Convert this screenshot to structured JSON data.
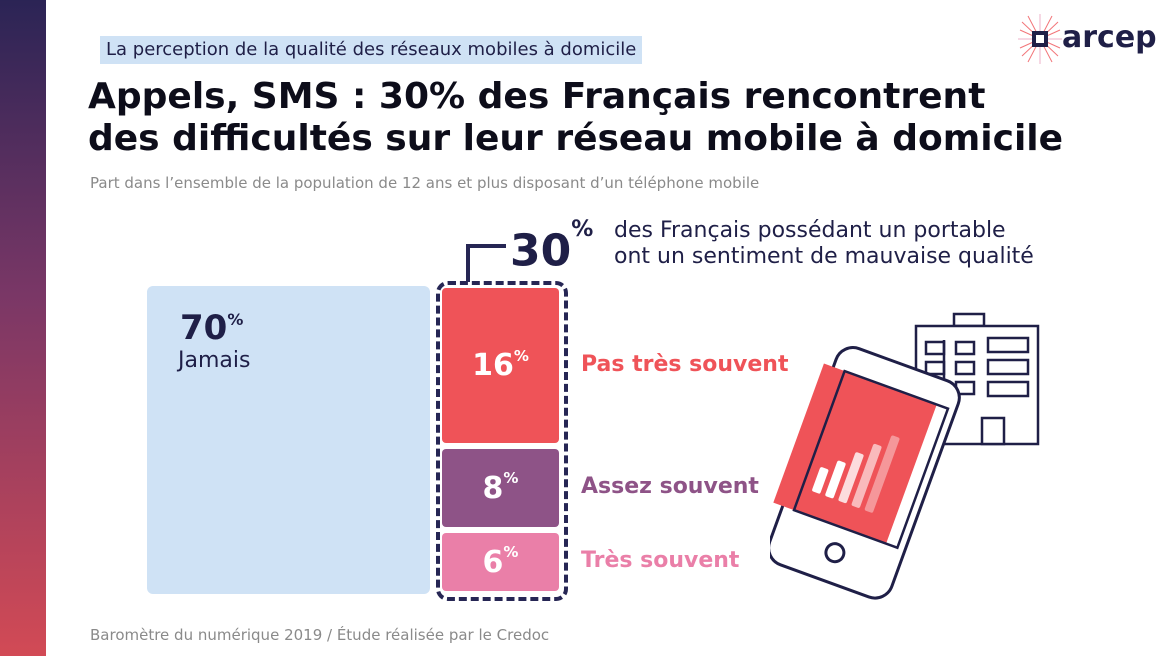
{
  "header": {
    "kicker": "La perception de la qualité des réseaux mobiles à domicile",
    "logo_text": "arcep",
    "title_line1": "Appels, SMS : 30% des Français rencontrent",
    "title_line2": "des difficultés sur leur réseau mobile à domicile",
    "subtitle": "Part dans l’ensemble de la population de 12 ans et plus disposant d’un téléphone mobile"
  },
  "footer": {
    "source": "Baromètre du numérique 2019 / Étude réalisée par le Credoc"
  },
  "colors": {
    "jamais": "#cfe2f5",
    "pas_tres_souvent": "#ef5358",
    "assez_souvent": "#8e5387",
    "tres_souvent": "#ea7fa8",
    "navy": "#1f1f47"
  },
  "chart_data": {
    "type": "bar",
    "unit": "%",
    "total": {
      "value": 30,
      "value_text": "30",
      "sup": "%",
      "desc_line1": "des Français possédant un portable",
      "desc_line2": "ont un sentiment de mauvaise qualité"
    },
    "jamais": {
      "value": 70,
      "value_text": "70",
      "sup": "%",
      "label": "Jamais"
    },
    "segments": [
      {
        "label": "Pas très souvent",
        "value": 16,
        "value_text": "16",
        "sup": "%",
        "color": "#ef5358"
      },
      {
        "label": "Assez souvent",
        "value": 8,
        "value_text": "8",
        "sup": "%",
        "color": "#8e5387"
      },
      {
        "label": "Très souvent",
        "value": 6,
        "value_text": "6",
        "sup": "%",
        "color": "#ea7fa8"
      }
    ],
    "illustration_icons": [
      "building-icon",
      "smartphone-icon",
      "signal-bars-icon"
    ]
  }
}
